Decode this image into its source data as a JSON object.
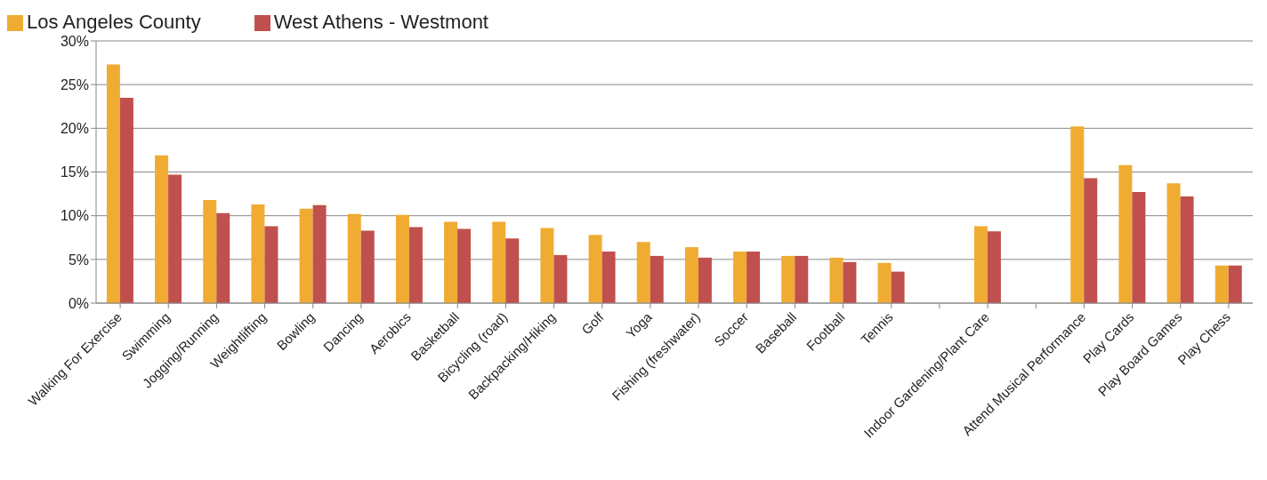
{
  "chart_data": {
    "type": "bar",
    "categories": [
      "Walking For Exercise",
      "Swimming",
      "Jogging/Running",
      "Weightlifting",
      "Bowling",
      "Dancing",
      "Aerobics",
      "Basketball",
      "Bicycling (road)",
      "Backpacking/Hiking",
      "Golf",
      "Yoga",
      "Fishing (freshwater)",
      "Soccer",
      "Baseball",
      "Football",
      "Tennis",
      null,
      "Indoor Gardening/Plant Care",
      null,
      "Attend Musical Performance",
      "Play Cards",
      "Play Board Games",
      "Play Chess"
    ],
    "series": [
      {
        "name": "Los Angeles County",
        "color": "#f0ac32",
        "values": [
          27.3,
          16.9,
          11.8,
          11.3,
          10.8,
          10.2,
          10.1,
          9.3,
          9.3,
          8.6,
          7.8,
          7.0,
          6.4,
          5.9,
          5.4,
          5.2,
          4.6,
          null,
          8.8,
          null,
          20.2,
          15.8,
          13.7,
          4.3
        ]
      },
      {
        "name": "West Athens - Westmont",
        "color": "#c0504d",
        "values": [
          23.5,
          14.7,
          10.3,
          8.8,
          11.2,
          8.3,
          8.7,
          8.5,
          7.4,
          5.5,
          5.9,
          5.4,
          5.2,
          5.9,
          5.4,
          4.7,
          3.6,
          null,
          8.2,
          null,
          14.3,
          12.7,
          12.2,
          4.3
        ]
      }
    ],
    "ylim": [
      0,
      30
    ],
    "yticks": [
      {
        "value": 0,
        "label": "0%"
      },
      {
        "value": 5,
        "label": "5%"
      },
      {
        "value": 10,
        "label": "10%"
      },
      {
        "value": 15,
        "label": "15%"
      },
      {
        "value": 20,
        "label": "20%"
      },
      {
        "value": 25,
        "label": "25%"
      },
      {
        "value": 30,
        "label": "30%"
      }
    ],
    "grid": "y",
    "legend": "top left"
  }
}
